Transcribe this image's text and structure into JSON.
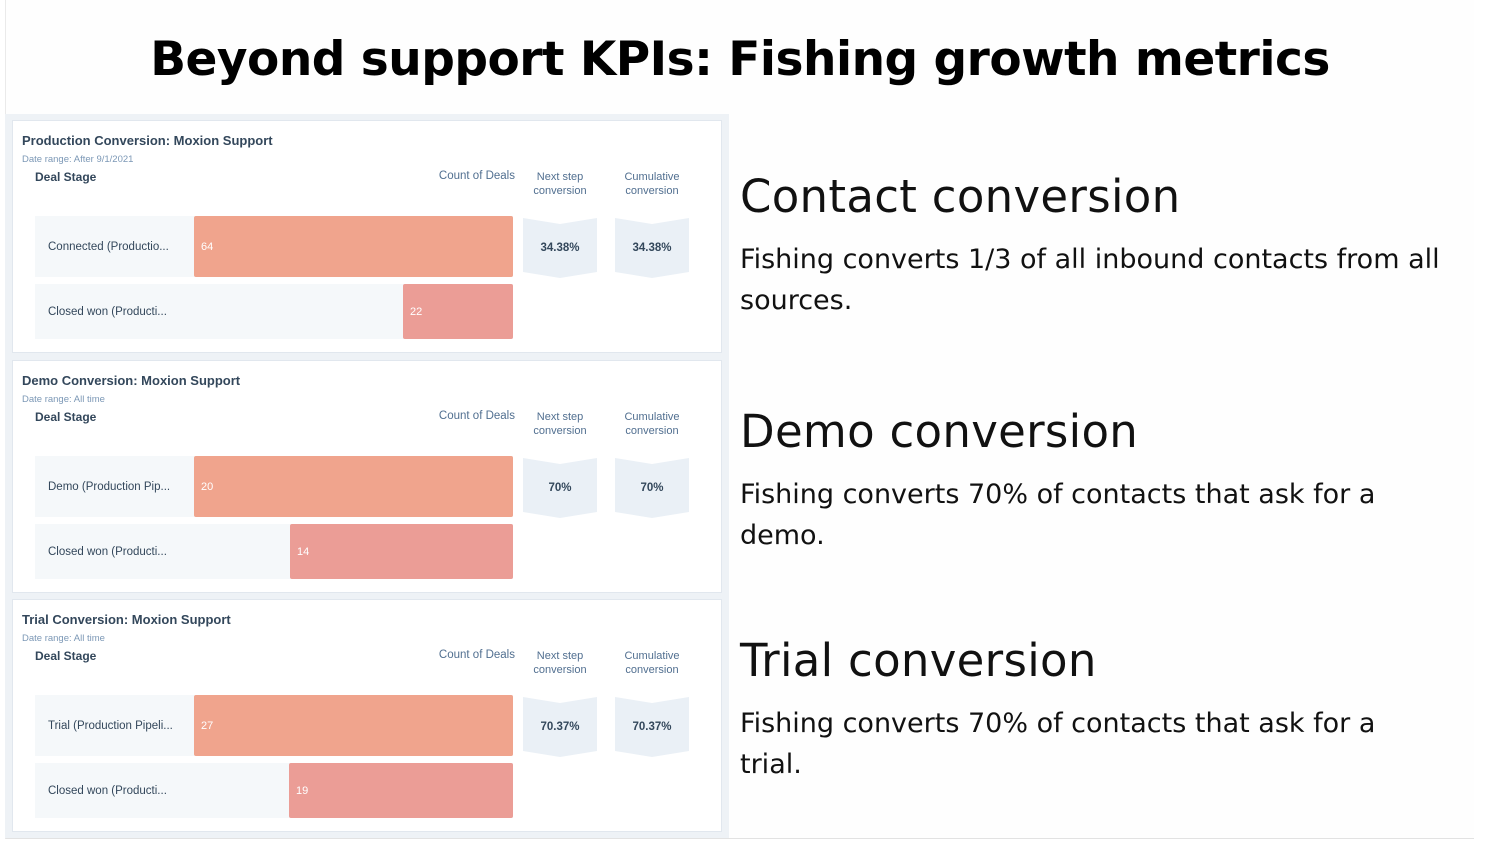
{
  "title": "Beyond support KPIs: Fishing growth metrics",
  "colors": {
    "bar_first_stage": "#f0a48d",
    "bar_closed_won": "#eb9d96",
    "panel_text": "#33475b",
    "muted_text": "#7c98b6"
  },
  "columns": {
    "stage": "Deal Stage",
    "count": "Count of Deals",
    "next_step": "Next step conversion",
    "cumulative": "Cumulative conversion"
  },
  "chart_data": [
    {
      "type": "bar",
      "orientation": "horizontal",
      "title": "Production Conversion: Moxion Support",
      "date_range": "Date range: After 9/1/2021",
      "categories": [
        "Connected (Productio...",
        "Closed won (Producti..."
      ],
      "values": [
        64,
        22
      ],
      "next_step_conversion": "34.38%",
      "cumulative_conversion": "34.38%"
    },
    {
      "type": "bar",
      "orientation": "horizontal",
      "title": "Demo Conversion: Moxion Support",
      "date_range": "Date range: All time",
      "categories": [
        "Demo (Production Pip...",
        "Closed won (Producti..."
      ],
      "values": [
        20,
        14
      ],
      "next_step_conversion": "70%",
      "cumulative_conversion": "70%"
    },
    {
      "type": "bar",
      "orientation": "horizontal",
      "title": "Trial Conversion: Moxion Support",
      "date_range": "Date range: All time",
      "categories": [
        "Trial (Production Pipeli...",
        "Closed won (Producti..."
      ],
      "values": [
        27,
        19
      ],
      "next_step_conversion": "70.37%",
      "cumulative_conversion": "70.37%"
    }
  ],
  "sections": [
    {
      "heading": "Contact conversion",
      "text": "Fishing converts 1/3 of all inbound contacts from all sources."
    },
    {
      "heading": "Demo conversion",
      "text": "Fishing converts 70% of contacts that ask for a demo."
    },
    {
      "heading": "Trial conversion",
      "text": "Fishing converts 70% of contacts that ask for a trial."
    }
  ]
}
